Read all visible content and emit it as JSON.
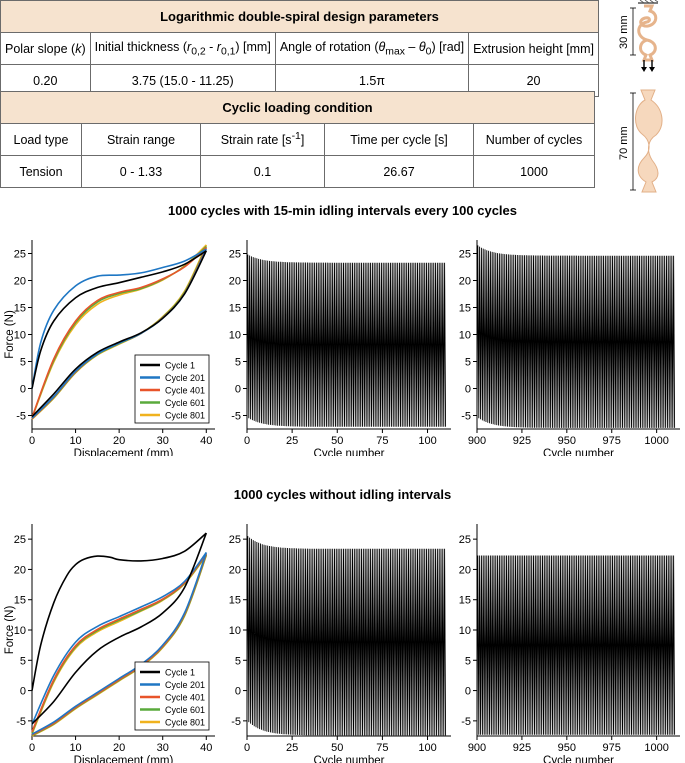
{
  "table1": {
    "title": "Logarithmic double-spiral design parameters",
    "headers": [
      "Polar slope (k)",
      "Initial thickness (r0,2 - r0,1) [mm]",
      "Angle of rotation (θmax – θ0) [rad]",
      "Extrusion height [mm]"
    ],
    "values": [
      "0.20",
      "3.75 (15.0 - 11.25)",
      "1.5π",
      "20"
    ]
  },
  "table2": {
    "title": "Cyclic loading condition",
    "headers": [
      "Load type",
      "Strain range",
      "Strain rate [s-1]",
      "Time per cycle [s]",
      "Number of cycles"
    ],
    "values": [
      "Tension",
      "0 - 1.33",
      "0.1",
      "26.67",
      "1000"
    ]
  },
  "specimen": {
    "label_top": "30 mm",
    "label_bottom": "70 mm"
  },
  "colors": {
    "cycle1": "#000000",
    "cycle201": "#1f77c4",
    "cycle401": "#e8542a",
    "cycle601": "#5aaa3c",
    "cycle801": "#f0b21e",
    "specimen_fill": "#f6d8bd",
    "table_header": "#f6e3cf"
  },
  "section1": {
    "title": "1000 cycles with 15-min idling intervals every 100 cycles"
  },
  "section2": {
    "title": "1000 cycles without idling intervals"
  },
  "chart_data": [
    {
      "id": "s1_loops",
      "type": "line",
      "xlabel": "Displacement (mm)",
      "ylabel": "Force (N)",
      "xlim": [
        0,
        42
      ],
      "ylim": [
        -7.5,
        27.5
      ],
      "xticks": [
        0,
        10,
        20,
        30,
        40
      ],
      "yticks": [
        -5,
        0,
        5,
        10,
        15,
        20,
        25
      ],
      "legend": "bottom-right",
      "series": [
        {
          "name": "Cycle 1",
          "color": "#000000",
          "load": [
            [
              0,
              0
            ],
            [
              2,
              7
            ],
            [
              5,
              12.5
            ],
            [
              10,
              16.8
            ],
            [
              15,
              18.7
            ],
            [
              20,
              19.6
            ],
            [
              25,
              20.6
            ],
            [
              30,
              21.6
            ],
            [
              35,
              23
            ],
            [
              40,
              25.5
            ]
          ],
          "unload": [
            [
              40,
              25.5
            ],
            [
              35,
              17.5
            ],
            [
              30,
              13
            ],
            [
              25,
              10.3
            ],
            [
              20,
              8.6
            ],
            [
              15,
              6.7
            ],
            [
              10,
              3.6
            ],
            [
              5,
              -1
            ],
            [
              0,
              -5.2
            ]
          ]
        },
        {
          "name": "Cycle 201",
          "color": "#1f77c4",
          "load": [
            [
              0,
              0
            ],
            [
              2,
              8.5
            ],
            [
              5,
              14.5
            ],
            [
              10,
              19
            ],
            [
              15,
              20.8
            ],
            [
              20,
              21
            ],
            [
              25,
              21.4
            ],
            [
              30,
              22.4
            ],
            [
              35,
              23.6
            ],
            [
              40,
              25.8
            ]
          ],
          "unload": [
            [
              40,
              25.8
            ],
            [
              35,
              17.5
            ],
            [
              30,
              13
            ],
            [
              25,
              10.2
            ],
            [
              20,
              8.4
            ],
            [
              15,
              6.4
            ],
            [
              10,
              3.2
            ],
            [
              5,
              -1.5
            ],
            [
              0,
              -5.5
            ]
          ]
        },
        {
          "name": "Cycle 401",
          "color": "#e8542a",
          "load": [
            [
              0,
              -5.4
            ],
            [
              5,
              5.5
            ],
            [
              10,
              12.5
            ],
            [
              15,
              16.3
            ],
            [
              20,
              17.8
            ],
            [
              25,
              18.7
            ],
            [
              30,
              20.3
            ],
            [
              35,
              22.5
            ],
            [
              40,
              26.1
            ]
          ],
          "unload": [
            [
              40,
              26.1
            ],
            [
              35,
              17.6
            ],
            [
              30,
              13.1
            ],
            [
              25,
              10.2
            ],
            [
              20,
              8.4
            ],
            [
              15,
              6.4
            ],
            [
              10,
              3.1
            ],
            [
              5,
              -1.6
            ],
            [
              0,
              -5.6
            ]
          ]
        },
        {
          "name": "Cycle 601",
          "color": "#5aaa3c",
          "load": [
            [
              0,
              -5.4
            ],
            [
              5,
              5.2
            ],
            [
              10,
              12.2
            ],
            [
              15,
              16
            ],
            [
              20,
              17.6
            ],
            [
              25,
              18.5
            ],
            [
              30,
              20.2
            ],
            [
              35,
              22.6
            ],
            [
              40,
              26.3
            ]
          ],
          "unload": [
            [
              40,
              26.3
            ],
            [
              35,
              17.8
            ],
            [
              30,
              13.2
            ],
            [
              25,
              10.2
            ],
            [
              20,
              8.3
            ],
            [
              15,
              6.3
            ],
            [
              10,
              3
            ],
            [
              5,
              -1.7
            ],
            [
              0,
              -5.6
            ]
          ]
        },
        {
          "name": "Cycle 801",
          "color": "#f0b21e",
          "load": [
            [
              0,
              -5.5
            ],
            [
              5,
              4.9
            ],
            [
              10,
              11.8
            ],
            [
              15,
              15.6
            ],
            [
              20,
              17.3
            ],
            [
              25,
              18.4
            ],
            [
              30,
              20.1
            ],
            [
              35,
              22.7
            ],
            [
              40,
              26.6
            ]
          ],
          "unload": [
            [
              40,
              26.6
            ],
            [
              35,
              18
            ],
            [
              30,
              13.3
            ],
            [
              25,
              10.2
            ],
            [
              20,
              8.2
            ],
            [
              15,
              6.2
            ],
            [
              10,
              2.9
            ],
            [
              5,
              -1.8
            ],
            [
              0,
              -5.7
            ]
          ]
        }
      ]
    },
    {
      "id": "s1_first",
      "type": "line",
      "xlabel": "Cycle number",
      "xlim": [
        0,
        113
      ],
      "ylim": [
        -7.5,
        27.5
      ],
      "xticks": [
        0,
        25,
        50,
        75,
        100
      ],
      "yticks": [
        -5,
        0,
        5,
        10,
        15,
        20,
        25
      ],
      "cycles": 110,
      "peak_start": 24.8,
      "peak_end": 23.3,
      "valley_start": -5.5,
      "valley_end": -7.1
    },
    {
      "id": "s1_last",
      "type": "line",
      "xlabel": "Cycle number",
      "xlim": [
        900,
        1013
      ],
      "ylim": [
        -7.5,
        27.5
      ],
      "xticks": [
        900,
        925,
        950,
        975,
        1000
      ],
      "yticks": [
        -5,
        0,
        5,
        10,
        15,
        20,
        25
      ],
      "cycles": 110,
      "peak_start": 26.5,
      "peak_end": 24.6,
      "valley_start": -5.5,
      "valley_end": -7.3
    },
    {
      "id": "s2_loops",
      "type": "line",
      "xlabel": "Displacement (mm)",
      "ylabel": "Force (N)",
      "xlim": [
        0,
        42
      ],
      "ylim": [
        -7.5,
        27.5
      ],
      "xticks": [
        0,
        10,
        20,
        30,
        40
      ],
      "yticks": [
        -5,
        0,
        5,
        10,
        15,
        20,
        25
      ],
      "legend": "bottom-right",
      "series": [
        {
          "name": "Cycle 1",
          "color": "#000000",
          "load": [
            [
              0,
              0
            ],
            [
              2,
              7.5
            ],
            [
              5,
              14.5
            ],
            [
              8,
              19
            ],
            [
              10,
              20.8
            ],
            [
              12,
              21.7
            ],
            [
              15,
              22.2
            ],
            [
              18,
              22
            ],
            [
              20,
              21.6
            ],
            [
              25,
              21.4
            ],
            [
              30,
              21.8
            ],
            [
              35,
              23
            ],
            [
              40,
              26
            ]
          ],
          "unload": [
            [
              40,
              26
            ],
            [
              35,
              17
            ],
            [
              30,
              12.8
            ],
            [
              25,
              10.5
            ],
            [
              20,
              8.8
            ],
            [
              15,
              6.6
            ],
            [
              10,
              3
            ],
            [
              5,
              -1.8
            ],
            [
              0,
              -5.5
            ]
          ]
        },
        {
          "name": "Cycle 201",
          "color": "#1f77c4",
          "load": [
            [
              0,
              -5.6
            ],
            [
              5,
              2.5
            ],
            [
              10,
              8
            ],
            [
              15,
              10.6
            ],
            [
              20,
              12.2
            ],
            [
              25,
              13.8
            ],
            [
              30,
              15.5
            ],
            [
              35,
              18
            ],
            [
              40,
              22.8
            ]
          ],
          "unload": [
            [
              40,
              22.8
            ],
            [
              35,
              12.8
            ],
            [
              30,
              7.5
            ],
            [
              25,
              4.3
            ],
            [
              20,
              2
            ],
            [
              15,
              -0.3
            ],
            [
              10,
              -2.6
            ],
            [
              5,
              -5.2
            ],
            [
              0,
              -7.2
            ]
          ]
        },
        {
          "name": "Cycle 401",
          "color": "#e8542a",
          "load": [
            [
              0,
              -6.8
            ],
            [
              5,
              1.8
            ],
            [
              10,
              7.4
            ],
            [
              15,
              10.1
            ],
            [
              20,
              11.8
            ],
            [
              25,
              13.4
            ],
            [
              30,
              15.1
            ],
            [
              35,
              17.8
            ],
            [
              40,
              22.6
            ]
          ],
          "unload": [
            [
              40,
              22.6
            ],
            [
              35,
              12.6
            ],
            [
              30,
              7.3
            ],
            [
              25,
              4.1
            ],
            [
              20,
              1.8
            ],
            [
              15,
              -0.5
            ],
            [
              10,
              -2.8
            ],
            [
              5,
              -5.4
            ],
            [
              0,
              -7.3
            ]
          ]
        },
        {
          "name": "Cycle 601",
          "color": "#5aaa3c",
          "load": [
            [
              0,
              -7
            ],
            [
              5,
              1.6
            ],
            [
              10,
              7.2
            ],
            [
              15,
              9.9
            ],
            [
              20,
              11.6
            ],
            [
              25,
              13.2
            ],
            [
              30,
              15
            ],
            [
              35,
              17.7
            ],
            [
              40,
              22.4
            ]
          ],
          "unload": [
            [
              40,
              22.4
            ],
            [
              35,
              12.4
            ],
            [
              30,
              7.2
            ],
            [
              25,
              4
            ],
            [
              20,
              1.7
            ],
            [
              15,
              -0.6
            ],
            [
              10,
              -2.9
            ],
            [
              5,
              -5.5
            ],
            [
              0,
              -7.4
            ]
          ]
        },
        {
          "name": "Cycle 801",
          "color": "#f0b21e",
          "load": [
            [
              0,
              -7.2
            ],
            [
              5,
              1.4
            ],
            [
              10,
              7
            ],
            [
              15,
              9.7
            ],
            [
              20,
              11.4
            ],
            [
              25,
              13.1
            ],
            [
              30,
              14.9
            ],
            [
              35,
              17.6
            ],
            [
              40,
              22.3
            ]
          ],
          "unload": [
            [
              40,
              22.3
            ],
            [
              35,
              12.3
            ],
            [
              30,
              7.1
            ],
            [
              25,
              3.9
            ],
            [
              20,
              1.6
            ],
            [
              15,
              -0.7
            ],
            [
              10,
              -3
            ],
            [
              5,
              -5.6
            ],
            [
              0,
              -7.5
            ]
          ]
        }
      ]
    },
    {
      "id": "s2_first",
      "type": "line",
      "xlabel": "Cycle number",
      "xlim": [
        0,
        113
      ],
      "ylim": [
        -7.5,
        27.5
      ],
      "xticks": [
        0,
        25,
        50,
        75,
        100
      ],
      "yticks": [
        -5,
        0,
        5,
        10,
        15,
        20,
        25
      ],
      "cycles": 110,
      "peak_start": 25.5,
      "peak_end": 23.4,
      "valley_start": -5.2,
      "valley_end": -7.4
    },
    {
      "id": "s2_last",
      "type": "line",
      "xlabel": "Cycle number",
      "xlim": [
        900,
        1013
      ],
      "ylim": [
        -7.5,
        27.5
      ],
      "xticks": [
        900,
        925,
        950,
        975,
        1000
      ],
      "yticks": [
        -5,
        0,
        5,
        10,
        15,
        20,
        25
      ],
      "cycles": 110,
      "peak_start": 22.3,
      "peak_end": 22.3,
      "valley_start": -7.3,
      "valley_end": -7.3
    }
  ]
}
